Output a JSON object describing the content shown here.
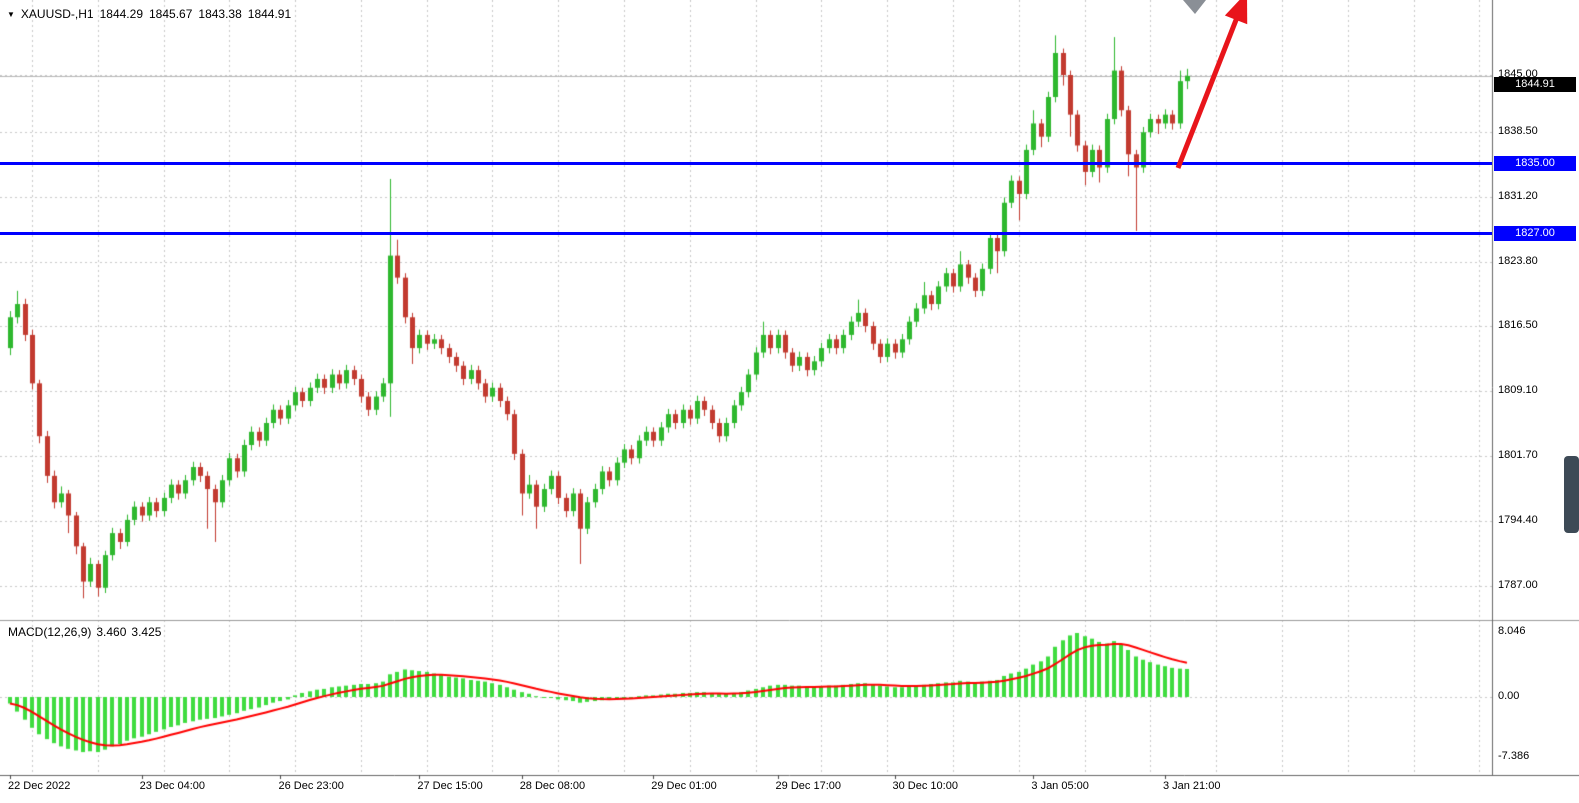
{
  "header": {
    "dropdown_icon": "▼",
    "symbol": "XAUUSD-,H1",
    "open": "1844.29",
    "high": "1845.67",
    "low": "1843.38",
    "close": "1844.91"
  },
  "price_axis": {
    "current_price_tag": {
      "text": "1844.91",
      "value": 1844.91,
      "bg": "#000000",
      "fg": "#ffffff"
    }
  },
  "macd_panel": {
    "name": "MACD(12,26,9)",
    "value_main": "3.460",
    "value_signal": "3.425",
    "histogram_color": "#3fdc3f",
    "signal_color": "#ff0000"
  },
  "annotations": {
    "trend_arrow": {
      "color": "#e8151b",
      "from": [
        1178,
        168
      ],
      "to": [
        1247,
        -8
      ]
    },
    "top_triangle": {
      "color": "#8a8f96",
      "points": [
        [
          1183,
          0
        ],
        [
          1206,
          0
        ],
        [
          1195,
          14
        ]
      ]
    }
  },
  "scrollbar": {
    "color": "#3d4a56"
  },
  "chart_data": {
    "type": "candlestick",
    "title": "XAUUSD-,H1",
    "xlabel": "time",
    "ylabel": "price",
    "ylim": [
      1783.5,
      1853.5
    ],
    "grid": true,
    "bull_color": "#2eb82e",
    "bear_color": "#c23a2f",
    "price_gridlines": [
      1845.0,
      1838.5,
      1831.2,
      1823.8,
      1816.5,
      1809.1,
      1801.7,
      1794.4,
      1787.0
    ],
    "price_ticks": [
      {
        "text": "1845.00",
        "value": 1845.0
      },
      {
        "text": "1838.50",
        "value": 1838.5
      },
      {
        "text": "1831.20",
        "value": 1831.2
      },
      {
        "text": "1823.80",
        "value": 1823.8
      },
      {
        "text": "1816.50",
        "value": 1816.5
      },
      {
        "text": "1809.10",
        "value": 1809.1
      },
      {
        "text": "1801.70",
        "value": 1801.7
      },
      {
        "text": "1794.40",
        "value": 1794.4
      },
      {
        "text": "1787.00",
        "value": 1787.0
      }
    ],
    "time_ticks": [
      {
        "text": "22 Dec 2022",
        "index": 0
      },
      {
        "text": "23 Dec 04:00",
        "index": 18
      },
      {
        "text": "26 Dec 23:00",
        "index": 37
      },
      {
        "text": "27 Dec 15:00",
        "index": 56
      },
      {
        "text": "28 Dec 08:00",
        "index": 70
      },
      {
        "text": "29 Dec 01:00",
        "index": 88
      },
      {
        "text": "29 Dec 17:00",
        "index": 105
      },
      {
        "text": "30 Dec 10:00",
        "index": 121
      },
      {
        "text": "3 Jan 05:00",
        "index": 140
      },
      {
        "text": "3 Jan 21:00",
        "index": 158
      }
    ],
    "levels": [
      {
        "text": "1835.00",
        "value": 1835.0,
        "color": "#0000ff"
      },
      {
        "text": "1827.00",
        "value": 1827.0,
        "color": "#0000ff"
      }
    ],
    "candles": [
      [
        1814.0,
        1818.2,
        1813.2,
        1817.5
      ],
      [
        1817.5,
        1820.5,
        1816.8,
        1819.0
      ],
      [
        1819.0,
        1819.6,
        1814.8,
        1815.5
      ],
      [
        1815.5,
        1816.1,
        1809.3,
        1810.0
      ],
      [
        1810.0,
        1810.4,
        1803.2,
        1804.0
      ],
      [
        1804.0,
        1804.6,
        1798.7,
        1799.5
      ],
      [
        1799.5,
        1800.1,
        1795.8,
        1796.5
      ],
      [
        1796.5,
        1798.3,
        1795.9,
        1797.5
      ],
      [
        1797.5,
        1797.9,
        1793.0,
        1795.0
      ],
      [
        1795.0,
        1795.4,
        1790.6,
        1791.5
      ],
      [
        1791.5,
        1791.9,
        1785.6,
        1787.5
      ],
      [
        1787.5,
        1790.2,
        1786.9,
        1789.5
      ],
      [
        1789.5,
        1789.9,
        1785.8,
        1786.8
      ],
      [
        1786.8,
        1791.0,
        1786.2,
        1790.5
      ],
      [
        1790.5,
        1793.6,
        1789.9,
        1793.0
      ],
      [
        1793.0,
        1793.5,
        1791.2,
        1792.0
      ],
      [
        1792.0,
        1795.1,
        1791.5,
        1794.5
      ],
      [
        1794.5,
        1796.6,
        1793.9,
        1796.0
      ],
      [
        1796.0,
        1796.5,
        1794.3,
        1795.0
      ],
      [
        1795.0,
        1797.1,
        1794.4,
        1796.5
      ],
      [
        1796.5,
        1797.0,
        1794.8,
        1795.5
      ],
      [
        1795.5,
        1797.6,
        1794.9,
        1797.0
      ],
      [
        1797.0,
        1799.1,
        1796.4,
        1798.5
      ],
      [
        1798.5,
        1799.0,
        1796.8,
        1797.5
      ],
      [
        1797.5,
        1799.6,
        1796.9,
        1799.0
      ],
      [
        1799.0,
        1801.1,
        1798.4,
        1800.5
      ],
      [
        1800.5,
        1801.0,
        1798.8,
        1799.5
      ],
      [
        1799.5,
        1800.0,
        1793.5,
        1798.0
      ],
      [
        1798.0,
        1798.5,
        1792.0,
        1796.5
      ],
      [
        1796.5,
        1799.6,
        1795.9,
        1799.0
      ],
      [
        1799.0,
        1802.1,
        1798.4,
        1801.5
      ],
      [
        1801.5,
        1802.0,
        1799.3,
        1800.0
      ],
      [
        1800.0,
        1803.6,
        1799.4,
        1803.0
      ],
      [
        1803.0,
        1805.1,
        1802.4,
        1804.5
      ],
      [
        1804.5,
        1805.0,
        1802.8,
        1803.5
      ],
      [
        1803.5,
        1806.1,
        1802.9,
        1805.5
      ],
      [
        1805.5,
        1807.6,
        1804.9,
        1807.0
      ],
      [
        1807.0,
        1807.5,
        1805.3,
        1806.0
      ],
      [
        1806.0,
        1808.1,
        1805.4,
        1807.5
      ],
      [
        1807.5,
        1809.6,
        1806.9,
        1809.0
      ],
      [
        1809.0,
        1809.5,
        1807.3,
        1808.0
      ],
      [
        1808.0,
        1810.1,
        1807.4,
        1809.5
      ],
      [
        1809.5,
        1811.1,
        1808.9,
        1810.5
      ],
      [
        1810.5,
        1811.0,
        1808.8,
        1809.5
      ],
      [
        1809.5,
        1811.6,
        1808.9,
        1811.0
      ],
      [
        1811.0,
        1811.5,
        1809.3,
        1810.0
      ],
      [
        1810.0,
        1812.1,
        1809.4,
        1811.5
      ],
      [
        1811.5,
        1812.0,
        1809.8,
        1810.5
      ],
      [
        1810.5,
        1811.0,
        1807.8,
        1808.5
      ],
      [
        1808.5,
        1809.0,
        1806.3,
        1807.0
      ],
      [
        1807.0,
        1809.1,
        1806.4,
        1808.5
      ],
      [
        1808.5,
        1810.6,
        1807.9,
        1810.0
      ],
      [
        1810.0,
        1833.2,
        1806.2,
        1824.5
      ],
      [
        1824.5,
        1826.3,
        1821.3,
        1822.0
      ],
      [
        1822.0,
        1822.5,
        1816.8,
        1817.5
      ],
      [
        1817.5,
        1818.0,
        1812.2,
        1814.0
      ],
      [
        1814.0,
        1816.1,
        1813.4,
        1815.5
      ],
      [
        1815.5,
        1816.0,
        1813.8,
        1814.5
      ],
      [
        1814.5,
        1815.6,
        1813.9,
        1815.0
      ],
      [
        1815.0,
        1815.5,
        1813.3,
        1814.0
      ],
      [
        1814.0,
        1814.5,
        1812.3,
        1813.0
      ],
      [
        1813.0,
        1813.5,
        1811.3,
        1812.0
      ],
      [
        1812.0,
        1812.5,
        1809.8,
        1810.5
      ],
      [
        1810.5,
        1812.1,
        1809.9,
        1811.5
      ],
      [
        1811.5,
        1812.0,
        1809.3,
        1810.0
      ],
      [
        1810.0,
        1810.5,
        1807.8,
        1808.5
      ],
      [
        1808.5,
        1810.1,
        1807.9,
        1809.5
      ],
      [
        1809.5,
        1810.0,
        1807.3,
        1808.0
      ],
      [
        1808.0,
        1808.5,
        1805.8,
        1806.5
      ],
      [
        1806.5,
        1807.0,
        1801.3,
        1802.0
      ],
      [
        1802.0,
        1802.5,
        1795.0,
        1797.5
      ],
      [
        1797.5,
        1799.6,
        1796.9,
        1798.5
      ],
      [
        1798.5,
        1799.0,
        1793.5,
        1796.0
      ],
      [
        1796.0,
        1798.6,
        1795.4,
        1798.0
      ],
      [
        1798.0,
        1800.1,
        1797.4,
        1799.5
      ],
      [
        1799.5,
        1800.0,
        1796.3,
        1797.0
      ],
      [
        1797.0,
        1797.5,
        1794.8,
        1795.5
      ],
      [
        1795.5,
        1798.1,
        1794.9,
        1797.5
      ],
      [
        1797.5,
        1798.0,
        1789.5,
        1793.5
      ],
      [
        1793.5,
        1797.1,
        1792.9,
        1796.5
      ],
      [
        1796.5,
        1798.6,
        1795.9,
        1798.0
      ],
      [
        1798.0,
        1800.6,
        1797.4,
        1800.0
      ],
      [
        1800.0,
        1800.5,
        1798.3,
        1799.0
      ],
      [
        1799.0,
        1801.6,
        1798.4,
        1801.0
      ],
      [
        1801.0,
        1803.1,
        1800.4,
        1802.5
      ],
      [
        1802.5,
        1803.0,
        1800.8,
        1801.5
      ],
      [
        1801.5,
        1804.1,
        1800.9,
        1803.5
      ],
      [
        1803.5,
        1805.1,
        1802.9,
        1804.5
      ],
      [
        1804.5,
        1805.0,
        1802.8,
        1803.5
      ],
      [
        1803.5,
        1805.6,
        1802.9,
        1805.0
      ],
      [
        1805.0,
        1807.1,
        1804.4,
        1806.5
      ],
      [
        1806.5,
        1807.0,
        1804.8,
        1805.5
      ],
      [
        1805.5,
        1807.6,
        1804.9,
        1807.0
      ],
      [
        1807.0,
        1807.5,
        1805.3,
        1806.0
      ],
      [
        1806.0,
        1808.6,
        1805.4,
        1808.0
      ],
      [
        1808.0,
        1808.5,
        1806.3,
        1807.0
      ],
      [
        1807.0,
        1807.5,
        1804.8,
        1805.5
      ],
      [
        1805.5,
        1806.0,
        1803.3,
        1804.0
      ],
      [
        1804.0,
        1806.1,
        1803.4,
        1805.5
      ],
      [
        1805.5,
        1808.1,
        1804.9,
        1807.5
      ],
      [
        1807.5,
        1809.6,
        1806.9,
        1809.0
      ],
      [
        1809.0,
        1811.6,
        1808.4,
        1811.0
      ],
      [
        1811.0,
        1814.1,
        1810.4,
        1813.5
      ],
      [
        1813.5,
        1817.0,
        1812.9,
        1815.5
      ],
      [
        1815.5,
        1816.0,
        1813.3,
        1814.0
      ],
      [
        1814.0,
        1816.1,
        1813.4,
        1815.5
      ],
      [
        1815.5,
        1816.0,
        1812.8,
        1813.5
      ],
      [
        1813.5,
        1814.0,
        1811.3,
        1812.0
      ],
      [
        1812.0,
        1813.6,
        1811.4,
        1813.0
      ],
      [
        1813.0,
        1813.5,
        1810.8,
        1811.5
      ],
      [
        1811.5,
        1813.1,
        1810.9,
        1812.5
      ],
      [
        1812.5,
        1814.6,
        1811.9,
        1814.0
      ],
      [
        1814.0,
        1815.6,
        1813.4,
        1815.0
      ],
      [
        1815.0,
        1815.5,
        1813.3,
        1814.0
      ],
      [
        1814.0,
        1816.1,
        1813.4,
        1815.5
      ],
      [
        1815.5,
        1817.6,
        1814.9,
        1817.0
      ],
      [
        1817.0,
        1819.5,
        1816.4,
        1818.0
      ],
      [
        1818.0,
        1818.5,
        1815.8,
        1816.5
      ],
      [
        1816.5,
        1817.0,
        1813.8,
        1814.5
      ],
      [
        1814.5,
        1815.0,
        1812.3,
        1813.0
      ],
      [
        1813.0,
        1815.1,
        1812.4,
        1814.5
      ],
      [
        1814.5,
        1815.0,
        1812.8,
        1813.5
      ],
      [
        1813.5,
        1815.6,
        1812.9,
        1815.0
      ],
      [
        1815.0,
        1817.6,
        1814.4,
        1817.0
      ],
      [
        1817.0,
        1819.1,
        1816.4,
        1818.5
      ],
      [
        1818.5,
        1821.5,
        1817.9,
        1820.0
      ],
      [
        1820.0,
        1820.5,
        1818.3,
        1819.0
      ],
      [
        1819.0,
        1821.6,
        1818.4,
        1821.0
      ],
      [
        1821.0,
        1823.1,
        1820.4,
        1822.5
      ],
      [
        1822.5,
        1823.0,
        1820.3,
        1821.0
      ],
      [
        1821.0,
        1825.0,
        1820.4,
        1823.5
      ],
      [
        1823.5,
        1824.0,
        1821.3,
        1822.0
      ],
      [
        1822.0,
        1822.5,
        1819.8,
        1820.5
      ],
      [
        1820.5,
        1823.6,
        1819.9,
        1823.0
      ],
      [
        1823.0,
        1827.1,
        1822.4,
        1826.5
      ],
      [
        1826.5,
        1827.0,
        1822.5,
        1825.0
      ],
      [
        1825.0,
        1831.1,
        1824.4,
        1830.5
      ],
      [
        1830.5,
        1833.6,
        1829.9,
        1833.0
      ],
      [
        1833.0,
        1833.5,
        1828.5,
        1831.5
      ],
      [
        1831.5,
        1837.1,
        1830.9,
        1836.5
      ],
      [
        1836.5,
        1841.0,
        1835.9,
        1839.5
      ],
      [
        1839.5,
        1840.0,
        1836.8,
        1838.0
      ],
      [
        1838.0,
        1843.1,
        1837.4,
        1842.5
      ],
      [
        1842.5,
        1849.5,
        1841.9,
        1847.5
      ],
      [
        1847.5,
        1848.0,
        1843.8,
        1845.0
      ],
      [
        1845.0,
        1845.5,
        1838.0,
        1840.5
      ],
      [
        1840.5,
        1841.0,
        1836.3,
        1837.0
      ],
      [
        1837.0,
        1837.5,
        1832.5,
        1834.0
      ],
      [
        1834.0,
        1837.1,
        1833.4,
        1836.5
      ],
      [
        1836.5,
        1837.0,
        1832.8,
        1834.5
      ],
      [
        1834.5,
        1840.6,
        1833.9,
        1840.0
      ],
      [
        1840.0,
        1849.3,
        1839.4,
        1845.5
      ],
      [
        1845.5,
        1846.0,
        1840.3,
        1841.0
      ],
      [
        1841.0,
        1841.5,
        1833.5,
        1836.0
      ],
      [
        1836.0,
        1836.5,
        1827.3,
        1834.5
      ],
      [
        1834.5,
        1839.1,
        1833.9,
        1838.5
      ],
      [
        1838.5,
        1840.6,
        1837.9,
        1840.0
      ],
      [
        1840.0,
        1840.5,
        1838.3,
        1839.5
      ],
      [
        1839.5,
        1841.1,
        1838.9,
        1840.5
      ],
      [
        1840.5,
        1841.0,
        1838.8,
        1839.5
      ],
      [
        1839.5,
        1845.5,
        1838.9,
        1844.3
      ],
      [
        1844.3,
        1845.7,
        1843.4,
        1844.9
      ]
    ],
    "macd": {
      "label": "MACD(12,26,9)",
      "main": 3.46,
      "signal": 3.425,
      "ylim": [
        -7.386,
        8.046
      ],
      "ticks": [
        {
          "text": "8.046",
          "value": 8.046
        },
        {
          "text": "0.00",
          "value": 0.0
        },
        {
          "text": "-7.386",
          "value": -7.386
        }
      ],
      "values": [
        -0.8,
        -1.8,
        -2.8,
        -3.8,
        -4.6,
        -5.2,
        -5.7,
        -6.1,
        -6.4,
        -6.6,
        -6.8,
        -6.7,
        -6.8,
        -6.5,
        -6.1,
        -5.8,
        -5.4,
        -5.1,
        -4.9,
        -4.6,
        -4.3,
        -4.0,
        -3.7,
        -3.5,
        -3.2,
        -3.0,
        -2.8,
        -2.7,
        -2.6,
        -2.4,
        -2.2,
        -2.0,
        -1.7,
        -1.5,
        -1.3,
        -1.0,
        -0.7,
        -0.5,
        -0.3,
        0.2,
        0.5,
        0.7,
        0.9,
        1.0,
        1.2,
        1.3,
        1.4,
        1.5,
        1.6,
        1.6,
        1.7,
        1.9,
        2.8,
        3.1,
        3.4,
        3.3,
        3.2,
        3.1,
        2.9,
        2.7,
        2.5,
        2.4,
        2.3,
        2.1,
        2.0,
        1.9,
        1.7,
        1.5,
        1.2,
        0.9,
        0.6,
        0.4,
        0.1,
        0.0,
        -0.1,
        -0.3,
        -0.4,
        -0.5,
        -0.7,
        -0.6,
        -0.5,
        -0.4,
        -0.3,
        -0.2,
        -0.1,
        0.0,
        0.1,
        0.2,
        0.2,
        0.3,
        0.4,
        0.4,
        0.5,
        0.5,
        0.6,
        0.6,
        0.5,
        0.4,
        0.4,
        0.5,
        0.6,
        0.8,
        1.0,
        1.2,
        1.4,
        1.5,
        1.5,
        1.4,
        1.4,
        1.3,
        1.3,
        1.3,
        1.4,
        1.4,
        1.5,
        1.6,
        1.7,
        1.7,
        1.6,
        1.4,
        1.3,
        1.2,
        1.2,
        1.3,
        1.4,
        1.5,
        1.6,
        1.7,
        1.8,
        1.8,
        2.0,
        1.9,
        1.8,
        1.9,
        2.0,
        2.1,
        2.6,
        2.9,
        3.1,
        3.5,
        4.0,
        4.4,
        5.0,
        6.2,
        7.0,
        7.6,
        7.9,
        7.5,
        7.2,
        6.8,
        6.6,
        6.9,
        6.5,
        5.8,
        5.0,
        4.6,
        4.3,
        4.0,
        3.8,
        3.6,
        3.5,
        3.46
      ]
    }
  }
}
